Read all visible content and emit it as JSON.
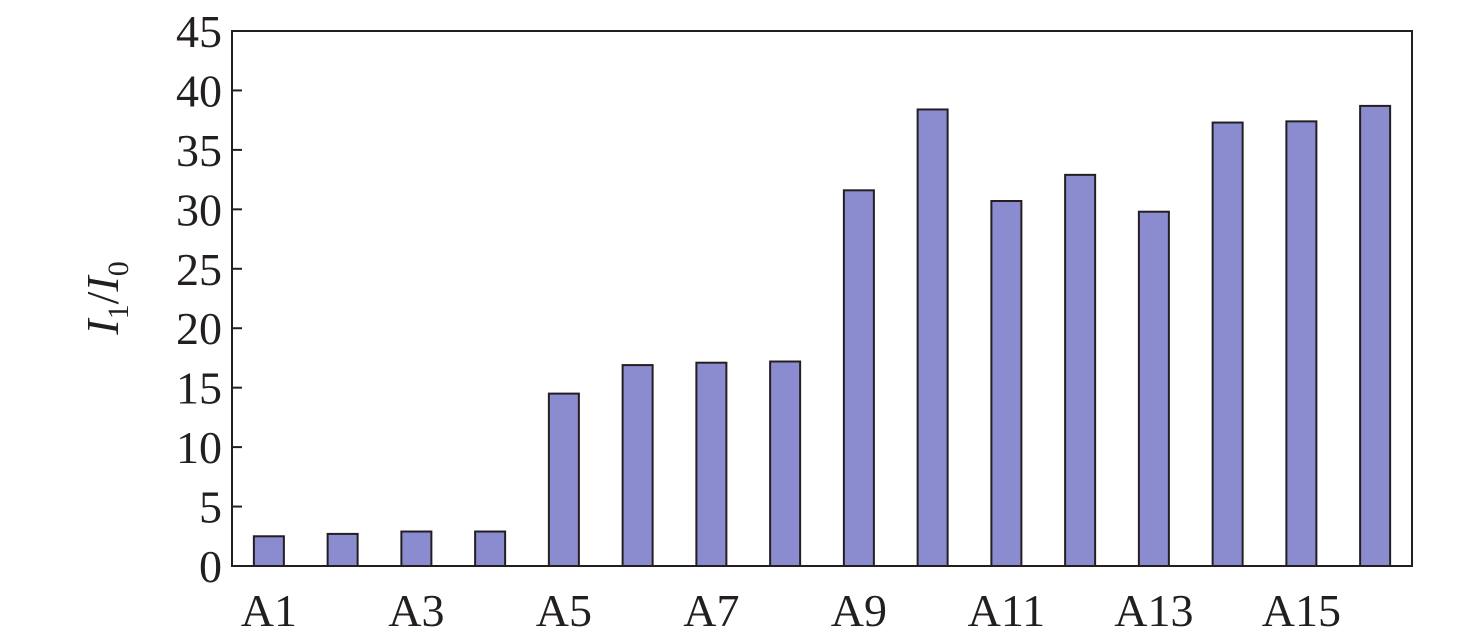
{
  "chart_data": {
    "type": "bar",
    "ylabel": [
      "I",
      "1",
      "/",
      "I",
      "0"
    ],
    "categories": [
      "A1",
      null,
      "A3",
      null,
      "A5",
      null,
      "A7",
      null,
      "A9",
      null,
      "A11",
      null,
      "A13",
      null,
      "A15",
      null
    ],
    "values": [
      2.5,
      2.7,
      2.9,
      2.9,
      14.5,
      16.9,
      17.1,
      17.2,
      31.6,
      38.4,
      30.7,
      32.9,
      29.8,
      37.3,
      37.4,
      38.7
    ],
    "color": "#8b8bcf",
    "ylim": [
      0,
      45
    ],
    "yticks": [
      0,
      5,
      10,
      15,
      20,
      25,
      30,
      35,
      40,
      45
    ],
    "grid": false
  }
}
